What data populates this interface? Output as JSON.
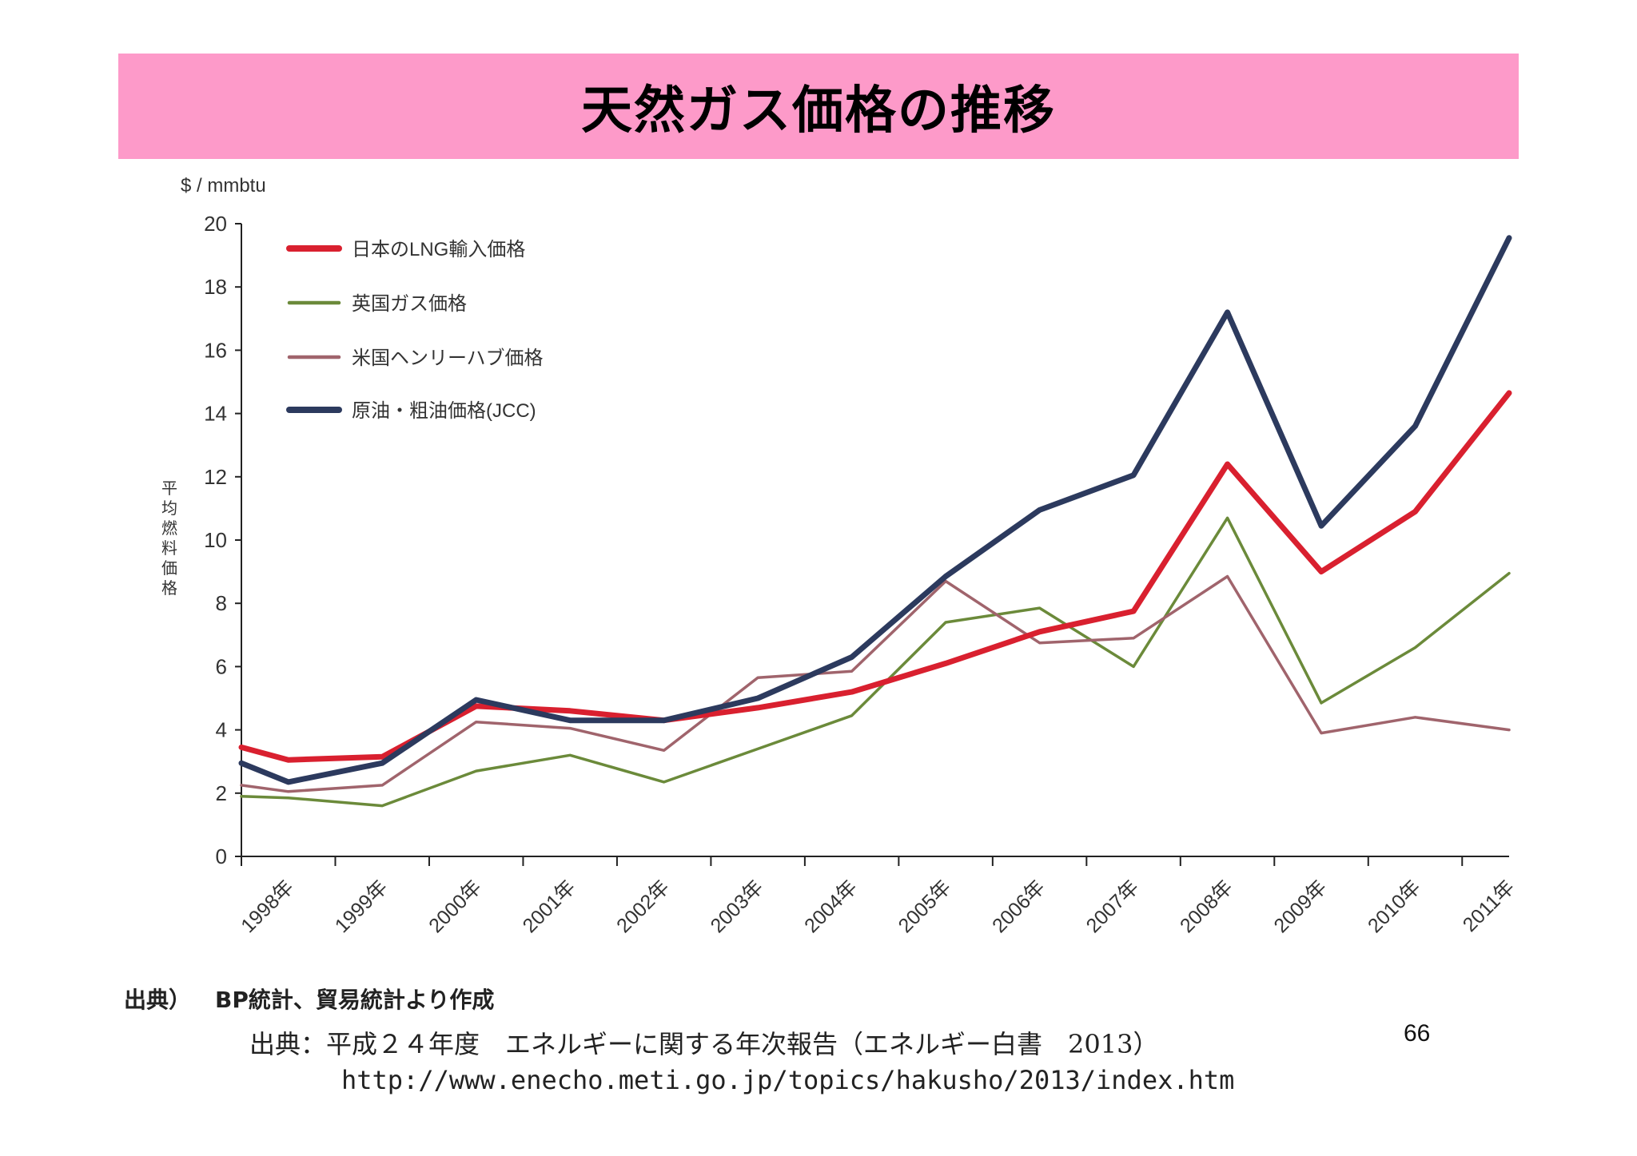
{
  "slide": {
    "title": "天然ガス価格の推移",
    "page_number": "66",
    "chart_source_label": "出典）",
    "chart_source_text": "BP統計、貿易統計より作成",
    "reference_line1": "出典：平成２４年度　エネルギーに関する年次報告（エネルギー白書　2013）",
    "reference_line2": "http://www.enecho.meti.go.jp/topics/hakusho/2013/index.htm"
  },
  "chart_data": {
    "type": "line",
    "unit_label": "$ / mmbtu",
    "ylabel": "平均燃料価格",
    "ylim": [
      0,
      20
    ],
    "yticks": [
      0,
      2,
      4,
      6,
      8,
      10,
      12,
      14,
      16,
      18,
      20
    ],
    "categories": [
      "1998年",
      "1999年",
      "2000年",
      "2001年",
      "2002年",
      "2003年",
      "2004年",
      "2005年",
      "2006年",
      "2007年",
      "2008年",
      "2009年",
      "2010年",
      "2011年"
    ],
    "x": [
      1998,
      1998.5,
      1999,
      1999.5,
      2000,
      2000.5,
      2001,
      2001.5,
      2002,
      2002.5,
      2003,
      2003.5,
      2004,
      2004.5,
      2005,
      2005.5,
      2006,
      2006.5,
      2007,
      2007.5,
      2008,
      2008.5,
      2009,
      2009.5,
      2010,
      2010.5,
      2011,
      2011.5
    ],
    "grid": false,
    "legend_position": "top-left",
    "series": [
      {
        "name": "日本のLNG輸入価格",
        "color": "#d9202f",
        "points": [
          [
            1998,
            3.45
          ],
          [
            1998.5,
            3.05
          ],
          [
            1999.5,
            3.15
          ],
          [
            2000.5,
            4.75
          ],
          [
            2001.5,
            4.6
          ],
          [
            2002.5,
            4.3
          ],
          [
            2003.5,
            4.7
          ],
          [
            2004.5,
            5.2
          ],
          [
            2005.5,
            6.1
          ],
          [
            2006.5,
            7.1
          ],
          [
            2007.5,
            7.75
          ],
          [
            2008.5,
            12.4
          ],
          [
            2009.5,
            9.0
          ],
          [
            2010.5,
            10.9
          ],
          [
            2011.5,
            14.65
          ]
        ]
      },
      {
        "name": "英国ガス価格",
        "color": "#6b8a3a",
        "points": [
          [
            1998,
            1.9
          ],
          [
            1998.5,
            1.85
          ],
          [
            1999.5,
            1.6
          ],
          [
            2000.5,
            2.7
          ],
          [
            2001.5,
            3.2
          ],
          [
            2002.5,
            2.35
          ],
          [
            2003.5,
            3.4
          ],
          [
            2004.5,
            4.45
          ],
          [
            2005.5,
            7.4
          ],
          [
            2006.5,
            7.85
          ],
          [
            2007.5,
            6.0
          ],
          [
            2008.5,
            10.7
          ],
          [
            2009.5,
            4.85
          ],
          [
            2010.5,
            6.6
          ],
          [
            2011.5,
            8.95
          ]
        ]
      },
      {
        "name": "米国ヘンリーハブ価格",
        "color": "#a0646c",
        "points": [
          [
            1998,
            2.25
          ],
          [
            1998.5,
            2.05
          ],
          [
            1999.5,
            2.25
          ],
          [
            2000.5,
            4.25
          ],
          [
            2001.5,
            4.05
          ],
          [
            2002.5,
            3.35
          ],
          [
            2003.5,
            5.65
          ],
          [
            2004.5,
            5.85
          ],
          [
            2005.5,
            8.7
          ],
          [
            2006.5,
            6.75
          ],
          [
            2007.5,
            6.9
          ],
          [
            2008.5,
            8.85
          ],
          [
            2009.5,
            3.9
          ],
          [
            2010.5,
            4.4
          ],
          [
            2011.5,
            4.0
          ]
        ]
      },
      {
        "name": "原油・粗油価格(JCC)",
        "color": "#2c3a5e",
        "points": [
          [
            1998,
            2.95
          ],
          [
            1998.5,
            2.35
          ],
          [
            1999.5,
            2.95
          ],
          [
            2000.5,
            4.95
          ],
          [
            2001.5,
            4.3
          ],
          [
            2002.5,
            4.3
          ],
          [
            2003.5,
            5.0
          ],
          [
            2004.5,
            6.3
          ],
          [
            2005.5,
            8.85
          ],
          [
            2006.5,
            10.95
          ],
          [
            2007.5,
            12.05
          ],
          [
            2008.5,
            17.2
          ],
          [
            2009.5,
            10.45
          ],
          [
            2010.5,
            13.6
          ],
          [
            2011.5,
            19.55
          ]
        ]
      }
    ]
  }
}
